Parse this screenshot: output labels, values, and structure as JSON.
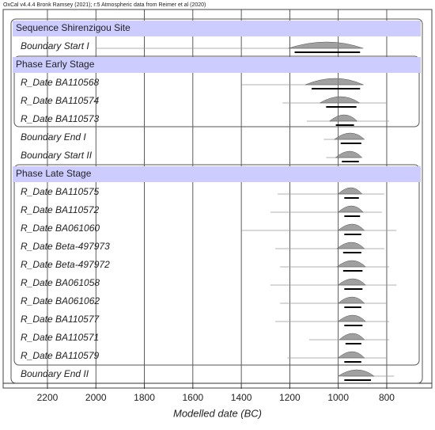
{
  "chart_data": {
    "type": "oxcal",
    "caption": "OxCal v4.4.4 Bronk Ramsey (2021); r:5 Atmospheric data from Reimer et al (2020)",
    "xlabel": "Modelled date (BC)",
    "xlim": [
      2350,
      640
    ],
    "xticks": [
      2200,
      2000,
      1800,
      1600,
      1400,
      1200,
      1000,
      800
    ],
    "grid": true,
    "rows": [
      {
        "label": "Sequence Shirenzigou Site"
      },
      {
        "label": "Boundary Start I",
        "extent": [
          2000,
          910
        ],
        "range": [
          1180,
          910
        ]
      },
      {
        "label": "Phase Early Stage"
      },
      {
        "label": "R_Date BA110568",
        "extent": [
          1400,
          895
        ],
        "range": [
          1110,
          910
        ]
      },
      {
        "label": "R_Date BA110574",
        "extent": [
          1230,
          800
        ],
        "range": [
          1050,
          925
        ]
      },
      {
        "label": "R_Date BA110573",
        "extent": [
          1130,
          790
        ],
        "range": [
          1010,
          935
        ]
      },
      {
        "label": "Boundary End I",
        "extent": [
          1060,
          900
        ],
        "range": [
          990,
          905
        ]
      },
      {
        "label": "Boundary Start II",
        "extent": [
          1050,
          910
        ],
        "range": [
          985,
          915
        ]
      },
      {
        "label": "Phase Late Stage"
      },
      {
        "label": "R_Date BA110575",
        "extent": [
          1250,
          810
        ],
        "range": [
          975,
          915
        ]
      },
      {
        "label": "R_Date BA110572",
        "extent": [
          1280,
          820
        ],
        "range": [
          975,
          910
        ]
      },
      {
        "label": "R_Date BA061060",
        "extent": [
          1400,
          760
        ],
        "range": [
          975,
          905
        ]
      },
      {
        "label": "R_Date Beta-497973",
        "extent": [
          1260,
          810
        ],
        "range": [
          980,
          905
        ]
      },
      {
        "label": "R_Date Beta-497972",
        "extent": [
          1240,
          790
        ],
        "range": [
          980,
          900
        ]
      },
      {
        "label": "R_Date BA061058",
        "extent": [
          1280,
          760
        ],
        "range": [
          975,
          900
        ]
      },
      {
        "label": "R_Date BA061062",
        "extent": [
          1240,
          800
        ],
        "range": [
          975,
          905
        ]
      },
      {
        "label": "R_Date BA110577",
        "extent": [
          1260,
          790
        ],
        "range": [
          975,
          900
        ]
      },
      {
        "label": "R_Date BA110571",
        "extent": [
          1120,
          790
        ],
        "range": [
          970,
          905
        ]
      },
      {
        "label": "R_Date BA110579",
        "extent": [
          1210,
          800
        ],
        "range": [
          975,
          905
        ]
      },
      {
        "label": "Boundary End II",
        "extent": [
          980,
          770
        ],
        "range": [
          975,
          865
        ]
      }
    ]
  }
}
